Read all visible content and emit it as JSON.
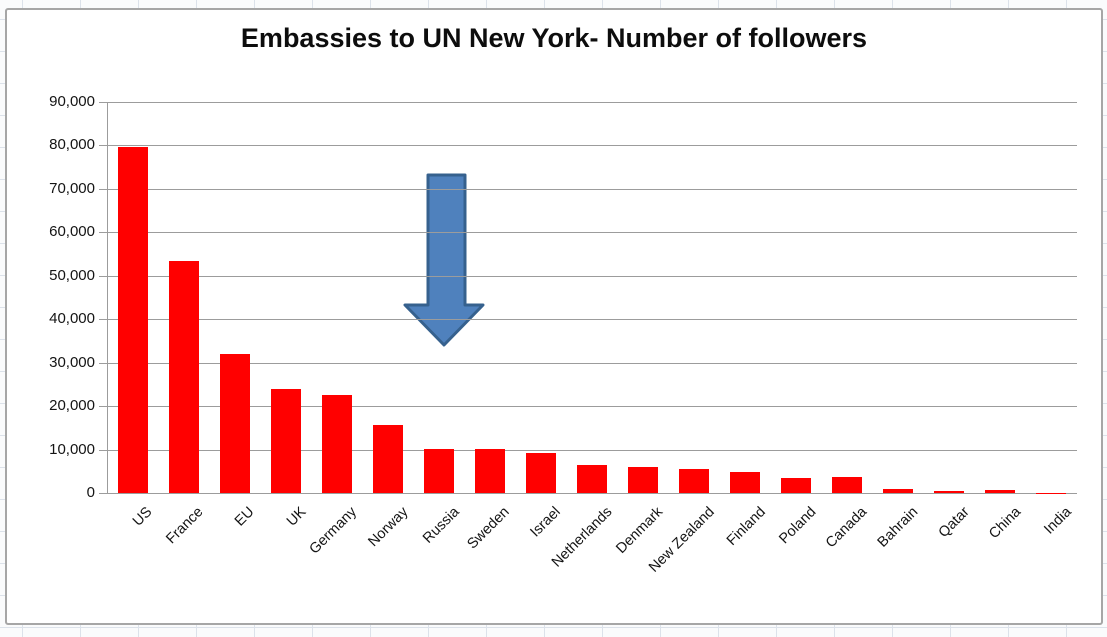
{
  "chart_data": {
    "type": "bar",
    "title": "Embassies to UN New York- Number of followers",
    "categories": [
      "US",
      "France",
      "EU",
      "UK",
      "Germany",
      "Norway",
      "Russia",
      "Sweden",
      "Israel",
      "Netherlands",
      "Denmark",
      "New Zealand",
      "Finland",
      "Poland",
      "Canada",
      "Bahrain",
      "Qatar",
      "China",
      "India"
    ],
    "values": [
      79600,
      53300,
      32000,
      23900,
      22600,
      15600,
      10200,
      10100,
      9300,
      6400,
      5900,
      5500,
      4800,
      3400,
      3600,
      1000,
      500,
      600,
      50
    ],
    "xlabel": "",
    "ylabel": "",
    "ylim": [
      0,
      90000
    ],
    "ytick_interval": 10000,
    "ytick_labels": [
      "90,000",
      "80,000",
      "70,000",
      "60,000",
      "50,000",
      "40,000",
      "30,000",
      "20,000",
      "10,000",
      "0"
    ],
    "grid": "horizontal",
    "legend": "none",
    "bar_color": "#FF0000",
    "grid_color": "#9C9C9C",
    "axis_label_color": "#141414",
    "annotation": {
      "shape": "block-arrow-down",
      "fill": "#4F81BD",
      "border": "#36618E",
      "points_at": "Russia"
    }
  }
}
